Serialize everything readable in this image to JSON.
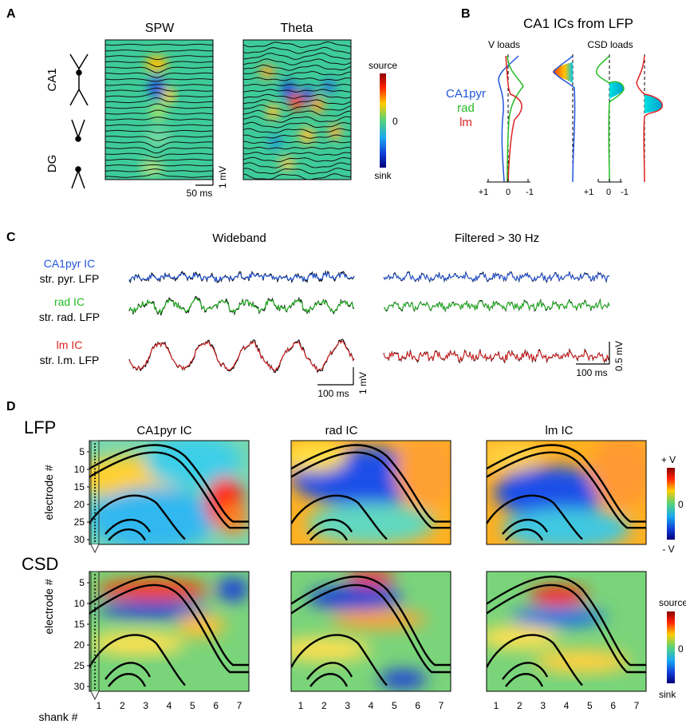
{
  "panels": {
    "A": {
      "letter": "A",
      "map_titles": [
        "SPW",
        "Theta"
      ],
      "regions": [
        "CA1",
        "DG"
      ],
      "colorbar": {
        "top": "source",
        "mid": "0",
        "bottom": "sink",
        "colors": [
          "#d7191c",
          "#fdae61",
          "#ffff40",
          "#3cc8a0",
          "#1a7fe0",
          "#1c1fa0"
        ]
      },
      "scale_time": "50 ms",
      "scale_volt": "1 mV"
    },
    "B": {
      "letter": "B",
      "title": "CA1 ICs from LFP",
      "v_loads_label": "V loads",
      "csd_loads_label": "CSD loads",
      "legend": [
        {
          "label": "CA1pyr",
          "color": "#2255dd"
        },
        {
          "label": "rad",
          "color": "#22bb22"
        },
        {
          "label": "lm",
          "color": "#dd2222"
        }
      ],
      "axis_ticks_v": [
        "+1",
        "0",
        "-1"
      ],
      "axis_ticks_csd": [
        "+1",
        "0",
        "-1"
      ]
    },
    "C": {
      "letter": "C",
      "wideband_title": "Wideband",
      "filtered_title": "Filtered > 30 Hz",
      "rows": [
        {
          "ic": "CA1pyr IC",
          "lfp": "str. pyr. LFP",
          "color": "#2255dd"
        },
        {
          "ic": "rad IC",
          "lfp": "str. rad. LFP",
          "color": "#22bb22"
        },
        {
          "ic": "lm IC",
          "lfp": "str. l.m. LFP",
          "color": "#dd2222"
        }
      ],
      "scale_wide_time": "100 ms",
      "scale_wide_volt": "1 mV",
      "scale_filt_time": "100 ms",
      "scale_filt_volt": "0.5 mV"
    },
    "D": {
      "letter": "D",
      "row_labels": [
        "LFP",
        "CSD"
      ],
      "column_titles": [
        "CA1pyr IC",
        "rad IC",
        "lm IC"
      ],
      "y_axis_label": "electrode #",
      "y_ticks": [
        "5",
        "10",
        "15",
        "20",
        "25",
        "30"
      ],
      "x_axis_label": "shank #",
      "x_ticks": [
        "1",
        "2",
        "3",
        "4",
        "5",
        "6",
        "7"
      ],
      "lfp_colorbar": {
        "top": "+ V",
        "mid": "0",
        "bottom": "- V"
      },
      "csd_colorbar": {
        "top": "source",
        "mid": "0",
        "bottom": "sink"
      }
    }
  }
}
